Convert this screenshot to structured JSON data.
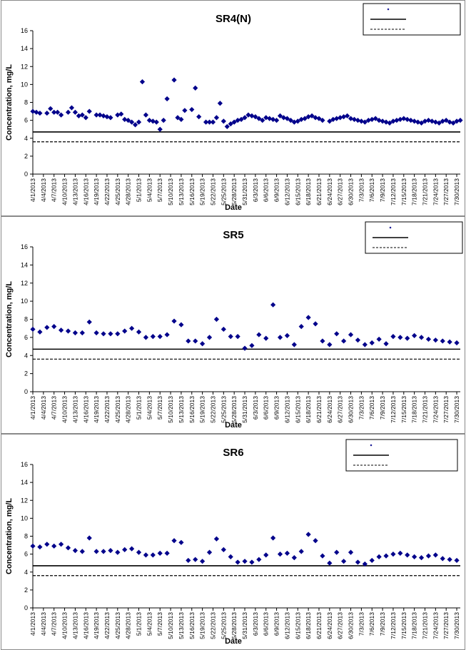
{
  "common": {
    "dates": [
      "4/1/2013",
      "4/4/2013",
      "4/7/2013",
      "4/10/2013",
      "4/13/2013",
      "4/16/2013",
      "4/19/2013",
      "4/22/2013",
      "4/25/2013",
      "4/28/2013",
      "5/1/2013",
      "5/4/2013",
      "5/7/2013",
      "5/10/2013",
      "5/13/2013",
      "5/16/2013",
      "5/19/2013",
      "5/22/2013",
      "5/25/2013",
      "5/28/2013",
      "5/31/2013",
      "6/3/2013",
      "6/6/2013",
      "6/9/2013",
      "6/12/2013",
      "6/15/2013",
      "6/18/2013",
      "6/21/2013",
      "6/24/2013",
      "6/27/2013",
      "6/30/2013",
      "7/3/2013",
      "7/6/2013",
      "7/9/2013",
      "7/12/2013",
      "7/15/2013",
      "7/18/2013",
      "7/21/2013",
      "7/24/2013",
      "7/27/2013",
      "7/30/2013"
    ]
  },
  "chart_data": [
    {
      "type": "scatter",
      "title": "SR4(N)",
      "xlabel": "Date",
      "ylabel": "Concentration, mg/L",
      "xlim": [
        "4/1/2013",
        "7/31/2013"
      ],
      "ylim": [
        0,
        16
      ],
      "yticks": [
        0,
        2,
        4,
        6,
        8,
        10,
        12,
        14,
        16
      ],
      "xticks": [
        "4/1/2013",
        "4/4/2013",
        "4/7/2013",
        "4/10/2013",
        "4/13/2013",
        "4/16/2013",
        "4/19/2013",
        "4/22/2013",
        "4/25/2013",
        "4/28/2013",
        "5/1/2013",
        "5/4/2013",
        "5/7/2013",
        "5/10/2013",
        "5/13/2013",
        "5/16/2013",
        "5/19/2013",
        "5/22/2013",
        "5/25/2013",
        "5/28/2013",
        "5/31/2013",
        "6/3/2013",
        "6/6/2013",
        "6/9/2013",
        "6/12/2013",
        "6/15/2013",
        "6/18/2013",
        "6/21/2013",
        "6/24/2013",
        "6/27/2013",
        "6/30/2013",
        "7/3/2013",
        "7/6/2013",
        "7/9/2013",
        "7/12/2013",
        "7/15/2013",
        "7/18/2013",
        "7/21/2013",
        "7/24/2013",
        "7/27/2013",
        "7/30/2013"
      ],
      "grid": false,
      "legend_position": "top-right",
      "marker_color": "#00008B",
      "series": [
        {
          "marker": "diamond",
          "x": [
            "4/1/2013",
            "4/2/2013",
            "4/3/2013",
            "4/5/2013",
            "4/6/2013",
            "4/7/2013",
            "4/8/2013",
            "4/9/2013",
            "4/11/2013",
            "4/12/2013",
            "4/13/2013",
            "4/14/2013",
            "4/15/2013",
            "4/16/2013",
            "4/17/2013",
            "4/19/2013",
            "4/20/2013",
            "4/21/2013",
            "4/22/2013",
            "4/23/2013",
            "4/25/2013",
            "4/26/2013",
            "4/27/2013",
            "4/28/2013",
            "4/29/2013",
            "4/30/2013",
            "5/1/2013",
            "5/2/2013",
            "5/3/2013",
            "5/4/2013",
            "5/5/2013",
            "5/6/2013",
            "5/7/2013",
            "5/8/2013",
            "5/9/2013",
            "5/11/2013",
            "5/12/2013",
            "5/13/2013",
            "5/14/2013",
            "5/16/2013",
            "5/17/2013",
            "5/18/2013",
            "5/20/2013",
            "5/21/2013",
            "5/22/2013",
            "5/23/2013",
            "5/24/2013",
            "5/25/2013",
            "5/26/2013",
            "5/27/2013",
            "5/28/2013",
            "5/29/2013",
            "5/30/2013",
            "5/31/2013",
            "6/1/2013",
            "6/2/2013",
            "6/3/2013",
            "6/4/2013",
            "6/5/2013",
            "6/6/2013",
            "6/7/2013",
            "6/8/2013",
            "6/9/2013",
            "6/10/2013",
            "6/11/2013",
            "6/12/2013",
            "6/13/2013",
            "6/14/2013",
            "6/15/2013",
            "6/16/2013",
            "6/17/2013",
            "6/18/2013",
            "6/19/2013",
            "6/20/2013",
            "6/21/2013",
            "6/22/2013",
            "6/24/2013",
            "6/25/2013",
            "6/26/2013",
            "6/27/2013",
            "6/28/2013",
            "6/29/2013",
            "6/30/2013",
            "7/1/2013",
            "7/2/2013",
            "7/3/2013",
            "7/4/2013",
            "7/5/2013",
            "7/6/2013",
            "7/7/2013",
            "7/8/2013",
            "7/9/2013",
            "7/10/2013",
            "7/11/2013",
            "7/12/2013",
            "7/13/2013",
            "7/14/2013",
            "7/15/2013",
            "7/16/2013",
            "7/17/2013",
            "7/18/2013",
            "7/19/2013",
            "7/20/2013",
            "7/21/2013",
            "7/22/2013",
            "7/23/2013",
            "7/24/2013",
            "7/25/2013",
            "7/26/2013",
            "7/27/2013",
            "7/28/2013",
            "7/29/2013",
            "7/30/2013",
            "7/31/2013"
          ],
          "y": [
            7.0,
            6.9,
            6.8,
            6.8,
            7.3,
            6.9,
            6.9,
            6.6,
            6.9,
            7.4,
            6.9,
            6.5,
            6.6,
            6.3,
            7.0,
            6.6,
            6.6,
            6.5,
            6.4,
            6.3,
            6.6,
            6.7,
            6.1,
            6.0,
            5.8,
            5.5,
            5.8,
            10.3,
            6.6,
            6.0,
            5.9,
            5.8,
            5.0,
            6.0,
            8.4,
            10.5,
            6.3,
            6.1,
            7.1,
            7.2,
            9.6,
            6.4,
            5.8,
            5.8,
            5.8,
            6.3,
            7.9,
            5.9,
            5.3,
            5.6,
            5.8,
            6.0,
            6.1,
            6.3,
            6.6,
            6.5,
            6.4,
            6.2,
            6.0,
            6.3,
            6.2,
            6.1,
            6.0,
            6.5,
            6.3,
            6.2,
            6.0,
            5.8,
            5.9,
            6.1,
            6.2,
            6.4,
            6.5,
            6.3,
            6.2,
            6.0,
            5.9,
            6.1,
            6.2,
            6.3,
            6.4,
            6.5,
            6.2,
            6.1,
            6.0,
            5.9,
            5.8,
            6.0,
            6.1,
            6.2,
            6.0,
            5.9,
            5.8,
            5.7,
            5.9,
            6.0,
            6.1,
            6.2,
            6.1,
            6.0,
            5.9,
            5.8,
            5.7,
            5.9,
            6.0,
            5.9,
            5.8,
            5.7,
            5.9,
            6.0,
            5.8,
            5.7,
            5.9,
            6.0
          ]
        },
        {
          "type": "line",
          "style": "solid",
          "y": 4.7
        },
        {
          "type": "line",
          "style": "dashed",
          "y": 3.6
        }
      ]
    },
    {
      "type": "scatter",
      "title": "SR5",
      "xlabel": "Date",
      "ylabel": "Concentration, mg/L",
      "xlim": [
        "4/1/2013",
        "7/31/2013"
      ],
      "ylim": [
        0,
        16
      ],
      "yticks": [
        0,
        2,
        4,
        6,
        8,
        10,
        12,
        14,
        16
      ],
      "xticks": [
        "4/1/2013",
        "4/4/2013",
        "4/7/2013",
        "4/10/2013",
        "4/13/2013",
        "4/16/2013",
        "4/19/2013",
        "4/22/2013",
        "4/25/2013",
        "4/28/2013",
        "5/1/2013",
        "5/4/2013",
        "5/7/2013",
        "5/10/2013",
        "5/13/2013",
        "5/16/2013",
        "5/19/2013",
        "5/22/2013",
        "5/25/2013",
        "5/28/2013",
        "5/31/2013",
        "6/3/2013",
        "6/6/2013",
        "6/9/2013",
        "6/12/2013",
        "6/15/2013",
        "6/18/2013",
        "6/21/2013",
        "6/24/2013",
        "6/27/2013",
        "6/30/2013",
        "7/3/2013",
        "7/6/2013",
        "7/9/2013",
        "7/12/2013",
        "7/15/2013",
        "7/18/2013",
        "7/21/2013",
        "7/24/2013",
        "7/27/2013",
        "7/30/2013"
      ],
      "grid": false,
      "legend_position": "top-right",
      "marker_color": "#00008B",
      "series": [
        {
          "marker": "diamond",
          "x": [
            "4/1/2013",
            "4/3/2013",
            "4/5/2013",
            "4/7/2013",
            "4/9/2013",
            "4/11/2013",
            "4/13/2013",
            "4/15/2013",
            "4/17/2013",
            "4/19/2013",
            "4/21/2013",
            "4/23/2013",
            "4/25/2013",
            "4/27/2013",
            "4/29/2013",
            "5/1/2013",
            "5/3/2013",
            "5/5/2013",
            "5/7/2013",
            "5/9/2013",
            "5/11/2013",
            "5/13/2013",
            "5/15/2013",
            "5/17/2013",
            "5/19/2013",
            "5/21/2013",
            "5/23/2013",
            "5/25/2013",
            "5/27/2013",
            "5/29/2013",
            "5/31/2013",
            "6/2/2013",
            "6/4/2013",
            "6/6/2013",
            "6/8/2013",
            "6/10/2013",
            "6/12/2013",
            "6/14/2013",
            "6/16/2013",
            "6/18/2013",
            "6/20/2013",
            "6/22/2013",
            "6/24/2013",
            "6/26/2013",
            "6/28/2013",
            "6/30/2013",
            "7/2/2013",
            "7/4/2013",
            "7/6/2013",
            "7/8/2013",
            "7/10/2013",
            "7/12/2013",
            "7/14/2013",
            "7/16/2013",
            "7/18/2013",
            "7/20/2013",
            "7/22/2013",
            "7/24/2013",
            "7/26/2013",
            "7/28/2013",
            "7/30/2013"
          ],
          "y": [
            6.9,
            6.6,
            7.1,
            7.2,
            6.8,
            6.7,
            6.5,
            6.5,
            7.7,
            6.5,
            6.4,
            6.4,
            6.4,
            6.7,
            7.0,
            6.6,
            6.0,
            6.1,
            6.1,
            6.3,
            7.8,
            7.4,
            5.6,
            5.6,
            5.3,
            6.0,
            8.0,
            6.9,
            6.1,
            6.1,
            4.8,
            5.1,
            6.3,
            5.9,
            9.6,
            6.0,
            6.2,
            5.2,
            7.2,
            8.2,
            7.5,
            5.6,
            5.2,
            6.4,
            5.6,
            6.3,
            5.7,
            5.2,
            5.4,
            5.8,
            5.3,
            6.1,
            6.0,
            5.9,
            6.2,
            6.0,
            5.8,
            5.7,
            5.6,
            5.5,
            5.4
          ]
        },
        {
          "type": "line",
          "style": "solid",
          "y": 4.7
        },
        {
          "type": "line",
          "style": "dashed",
          "y": 3.6
        }
      ]
    },
    {
      "type": "scatter",
      "title": "SR6",
      "xlabel": "Date",
      "ylabel": "Concentration, mg/L",
      "xlim": [
        "4/1/2013",
        "7/31/2013"
      ],
      "ylim": [
        0,
        16
      ],
      "yticks": [
        0,
        2,
        4,
        6,
        8,
        10,
        12,
        14,
        16
      ],
      "xticks": [
        "4/1/2013",
        "4/4/2013",
        "4/7/2013",
        "4/10/2013",
        "4/13/2013",
        "4/16/2013",
        "4/19/2013",
        "4/22/2013",
        "4/25/2013",
        "4/28/2013",
        "5/1/2013",
        "5/4/2013",
        "5/7/2013",
        "5/10/2013",
        "5/13/2013",
        "5/16/2013",
        "5/19/2013",
        "5/22/2013",
        "5/25/2013",
        "5/28/2013",
        "5/31/2013",
        "6/3/2013",
        "6/6/2013",
        "6/9/2013",
        "6/12/2013",
        "6/15/2013",
        "6/18/2013",
        "6/21/2013",
        "6/24/2013",
        "6/27/2013",
        "6/30/2013",
        "7/3/2013",
        "7/6/2013",
        "7/9/2013",
        "7/12/2013",
        "7/15/2013",
        "7/18/2013",
        "7/21/2013",
        "7/24/2013",
        "7/27/2013",
        "7/30/2013"
      ],
      "grid": false,
      "legend_position": "top-right",
      "marker_color": "#00008B",
      "series": [
        {
          "marker": "diamond",
          "x": [
            "4/1/2013",
            "4/3/2013",
            "4/5/2013",
            "4/7/2013",
            "4/9/2013",
            "4/11/2013",
            "4/13/2013",
            "4/15/2013",
            "4/17/2013",
            "4/19/2013",
            "4/21/2013",
            "4/23/2013",
            "4/25/2013",
            "4/27/2013",
            "4/29/2013",
            "5/1/2013",
            "5/3/2013",
            "5/5/2013",
            "5/7/2013",
            "5/9/2013",
            "5/11/2013",
            "5/13/2013",
            "5/15/2013",
            "5/17/2013",
            "5/19/2013",
            "5/21/2013",
            "5/23/2013",
            "5/25/2013",
            "5/27/2013",
            "5/29/2013",
            "5/31/2013",
            "6/2/2013",
            "6/4/2013",
            "6/6/2013",
            "6/8/2013",
            "6/10/2013",
            "6/12/2013",
            "6/14/2013",
            "6/16/2013",
            "6/18/2013",
            "6/20/2013",
            "6/22/2013",
            "6/24/2013",
            "6/26/2013",
            "6/28/2013",
            "6/30/2013",
            "7/2/2013",
            "7/4/2013",
            "7/6/2013",
            "7/8/2013",
            "7/10/2013",
            "7/12/2013",
            "7/14/2013",
            "7/16/2013",
            "7/18/2013",
            "7/20/2013",
            "7/22/2013",
            "7/24/2013",
            "7/26/2013",
            "7/28/2013",
            "7/30/2013"
          ],
          "y": [
            6.9,
            6.8,
            7.1,
            6.9,
            7.1,
            6.7,
            6.4,
            6.3,
            7.8,
            6.3,
            6.3,
            6.4,
            6.2,
            6.5,
            6.6,
            6.2,
            5.9,
            5.9,
            6.1,
            6.1,
            7.5,
            7.3,
            5.3,
            5.4,
            5.2,
            6.2,
            7.7,
            6.5,
            5.7,
            5.1,
            5.2,
            5.1,
            5.4,
            5.9,
            7.8,
            6.0,
            6.1,
            5.6,
            6.3,
            8.2,
            7.5,
            5.8,
            5.0,
            6.2,
            5.2,
            6.2,
            5.1,
            4.9,
            5.3,
            5.7,
            5.8,
            6.0,
            6.1,
            5.9,
            5.7,
            5.6,
            5.8,
            5.9,
            5.5,
            5.4,
            5.3
          ]
        },
        {
          "type": "line",
          "style": "solid",
          "y": 4.7
        },
        {
          "type": "line",
          "style": "dashed",
          "y": 3.6
        }
      ]
    }
  ]
}
